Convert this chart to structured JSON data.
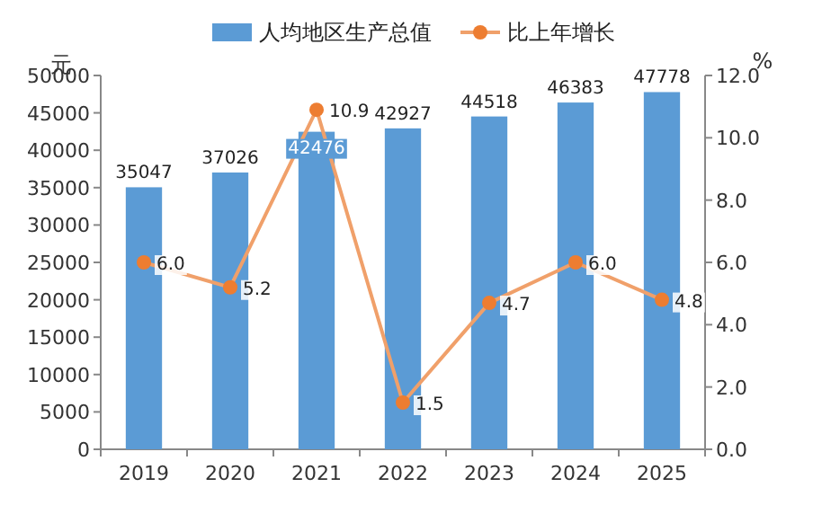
{
  "chart_data": {
    "type": "bar",
    "categories": [
      "2019",
      "2020",
      "2021",
      "2022",
      "2023",
      "2024",
      "2025"
    ],
    "series": [
      {
        "name": "人均地区生产总值",
        "color": "#5b9bd5",
        "values": [
          35047,
          37026,
          42476,
          42927,
          44518,
          46383,
          47778
        ]
      },
      {
        "name": "比上年增长",
        "type": "line",
        "axis": "y2",
        "color": "#f0a06a",
        "values": [
          6.0,
          5.2,
          10.9,
          1.5,
          4.7,
          6.0,
          4.8
        ],
        "value_labels": [
          "6.0",
          "5.2",
          "10.9",
          "1.5",
          "4.7",
          "6.0",
          "4.8"
        ]
      }
    ],
    "ylabel": "元",
    "y2label": "%",
    "ylim": [
      0,
      50000
    ],
    "yticks": [
      0,
      5000,
      10000,
      15000,
      20000,
      25000,
      30000,
      35000,
      40000,
      45000,
      50000
    ],
    "y2lim": [
      0,
      12
    ],
    "y2ticks": [
      {
        "value": 0,
        "label": "0.0"
      },
      {
        "value": 2,
        "label": "2.0"
      },
      {
        "value": 4,
        "label": "4.0"
      },
      {
        "value": 6,
        "label": "6.0"
      },
      {
        "value": 8,
        "label": "8.0"
      },
      {
        "value": 10,
        "label": "10.0"
      },
      {
        "value": 12,
        "label": "12.0"
      }
    ],
    "data_labels": true,
    "legend": "top",
    "marker": "circle",
    "grid": false
  }
}
